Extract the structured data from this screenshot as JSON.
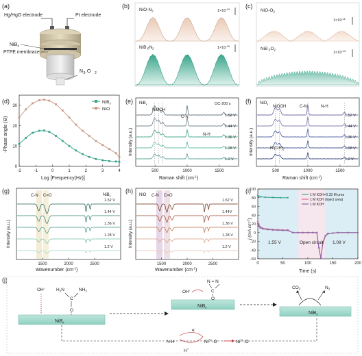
{
  "panels": {
    "a": {
      "letter": "(a)",
      "hg": "Hg/HgO electrode",
      "pt": "Pt electrode",
      "nib": "NiB",
      "nib_sub": "x",
      "ptfe": "PTFE membrace",
      "gas": "N  , O",
      "gas_sub1": "2",
      "gas_sub2": "2"
    },
    "b": {
      "letter": "(b)",
      "top": "NiO-N",
      "top_sub": "2",
      "bot": "NiB -N",
      "bot_sub1": "x",
      "bot_sub2": "2",
      "scale1": "1×10",
      "scale1_exp": "-10",
      "scale2": "1×10",
      "scale2_exp": "-10"
    },
    "c": {
      "letter": "(c)",
      "top": "NiO-O",
      "top_sub": "2",
      "bot": "NiB -O",
      "bot_sub1": "x",
      "bot_sub2": "2",
      "scale1": "1×10",
      "scale1_exp": "-11",
      "scale2": "1×10",
      "scale2_exp": "-13"
    },
    "d": {
      "letter": "(d)",
      "ylabel": "-Phase angle (ϴ)",
      "xlabel": "Log [Frequency(Hz)]",
      "legend": [
        "NiB",
        "NiO"
      ],
      "legend_sub": "x"
    },
    "e": {
      "letter": "(e)",
      "ylabel": "Intensity (a.u.)",
      "xlabel": "Raman shift (cm",
      "xlabel_sup": "-1",
      "xlabel_end": ")",
      "tag1": "NiB",
      "tag1_sub": "x",
      "tag2": "NiOOH",
      "tag3": "C-N",
      "tag4": "N-H",
      "tag5": "OC-200 s",
      "voltages": [
        "1.52 V",
        "1.44 V",
        "1.36 V",
        "1.28 V",
        "1.2 V"
      ]
    },
    "f": {
      "letter": "(f)",
      "ylabel": "Intensity (a.u.)",
      "xlabel": "Raman shift (cm",
      "xlabel_sup": "-1",
      "xlabel_end": ")",
      "tag1": "NiO",
      "tag1_sub": "x",
      "tag2": "NiOOH",
      "tag3": "C-N",
      "tag4": "N-H",
      "tag5": "Ni(OH)",
      "tag5_sub": "2",
      "voltages": [
        "1.52 V",
        "1.44 V",
        "1.36 V",
        "1.28 V",
        "1.2 V"
      ]
    },
    "g": {
      "letter": "(g)",
      "ylabel": "Intensity (a.u.)",
      "xlabel": "Wavenumber (cm",
      "xlabel_sup": "-1",
      "xlabel_end": ")",
      "tag1": "C-N",
      "tag2": "C=O",
      "tag3": "NiB",
      "tag3_sub": "x",
      "voltages": [
        "1.52 V",
        "1.44 V",
        "1.36 V",
        "1.28 V",
        "1.2 V"
      ]
    },
    "h": {
      "letter": "(h)",
      "ylabel": "Intensity (a.u.)",
      "xlabel": "Wavenumber (cm",
      "xlabel_sup": "-1",
      "xlabel_end": ")",
      "tag1": "NiO",
      "tag2": "C-N",
      "tag3": "C=O",
      "voltages": [
        "1.52 V",
        "1.44V",
        "1.36 V",
        "1.28 V",
        "1.2 V"
      ]
    },
    "i": {
      "letter": "(i)",
      "ylabel": "j (mA cm",
      "ylabel_sup": "-2",
      "ylabel_end": ")",
      "xlabel": "Time (s)",
      "legend": [
        "1 M KOH+0.33 M urea",
        "1 M KOH (inject urea)",
        "1 M KOH"
      ],
      "region1": "1.55 V",
      "region2": "Open circuit",
      "region3": "1.08 V"
    },
    "j": {
      "letter": "(j)",
      "oh": "OH",
      "oh_sup": "-",
      "h2n1": "H",
      "h2n1_sub": "2",
      "h2n1_end": "N",
      "nh2": "N",
      "nh2_end": "H",
      "nh2_sub": "2",
      "c": "C",
      "o": "O",
      "nib": "NiB",
      "nib_sub": "x",
      "oh2": "OH",
      "oh2_sup": "-",
      "n_eq": "N = N",
      "c2": "C",
      "o2": "O",
      "nib2": "NiB",
      "nib2_sub": "x",
      "co2": "CO",
      "co2_sub": "2",
      "n2": "N",
      "n2_sub": "2",
      "nib3": "NiB",
      "nib3_sub": "x",
      "nh": "N-H",
      "e": "e",
      "e_sup": "-",
      "h": "H",
      "h_sup": "+",
      "ni3": "Ni",
      "ni3_sup": "3+",
      "ni3_end": "-O",
      "ni2": "Ni",
      "ni2_sup": "2+",
      "ni2_end": "-O"
    }
  },
  "chart_data": [
    {
      "panel": "d",
      "type": "line",
      "xlabel": "Log [Frequency(Hz)]",
      "ylabel": "-Phase angle (ϴ)",
      "xlim": [
        -2,
        4
      ],
      "ylim": [
        0,
        35
      ],
      "x_ticks": [
        -2,
        -1,
        0,
        1,
        2,
        3,
        4
      ],
      "y_ticks": [
        0,
        10,
        20,
        30
      ],
      "series": [
        {
          "name": "NiB",
          "sub": "x",
          "color": "#3aa58c",
          "x": [
            -2,
            -1.6,
            -1.2,
            -0.8,
            -0.5,
            -0.2,
            0.2,
            0.6,
            1,
            1.4,
            1.8,
            2.2,
            2.6,
            3,
            3.4,
            3.8,
            4
          ],
          "y": [
            11,
            14,
            16.5,
            17.5,
            17.6,
            17,
            15,
            12.5,
            10,
            7.8,
            6,
            4.6,
            3.6,
            3,
            2.6,
            2.4,
            2.3
          ]
        },
        {
          "name": "NiO",
          "color": "#c99b86",
          "x": [
            -2,
            -1.6,
            -1.2,
            -0.8,
            -0.5,
            -0.2,
            0.2,
            0.6,
            1,
            1.4,
            1.8,
            2.2,
            2.6,
            3,
            3.4,
            3.8,
            4
          ],
          "y": [
            24,
            28,
            31,
            32.5,
            32.8,
            32.3,
            30.5,
            27.5,
            24,
            20.5,
            17.5,
            15,
            12.5,
            10.5,
            8.5,
            6.5,
            4.5
          ]
        }
      ]
    },
    {
      "panel": "e",
      "type": "line",
      "xlabel": "Raman shift (cm-1)",
      "ylabel": "Intensity (a.u.)",
      "xlim": [
        200,
        1800
      ],
      "x_ticks": [
        500,
        1000,
        1500
      ]
    },
    {
      "panel": "f",
      "type": "line",
      "xlabel": "Raman shift (cm-1)",
      "ylabel": "Intensity (a.u.)",
      "xlim": [
        200,
        1800
      ],
      "x_ticks": [
        500,
        1000,
        1500
      ]
    },
    {
      "panel": "g",
      "type": "line",
      "xlabel": "Wavenumber (cm-1)",
      "ylabel": "Intensity (a.u.)",
      "xlim": [
        1000,
        3000
      ],
      "x_ticks": [
        1500,
        2000,
        2500
      ]
    },
    {
      "panel": "h",
      "type": "line",
      "xlabel": "Wavenumber (cm-1)",
      "ylabel": "Intensity (a.u.)",
      "xlim": [
        1000,
        3000
      ],
      "x_ticks": [
        1500,
        2000,
        2500
      ]
    },
    {
      "panel": "i",
      "type": "line",
      "xlabel": "Time (s)",
      "ylabel": "j (mA cm-2)",
      "xlim": [
        0,
        200
      ],
      "ylim": [
        -60,
        100
      ],
      "x_ticks": [
        0,
        50,
        100,
        150,
        200
      ],
      "y_ticks": [
        -60,
        -40,
        -20,
        0,
        20,
        40,
        60,
        80,
        100
      ],
      "series": [
        {
          "name": "1 M KOH+0.33 M urea",
          "color": "#3aa58c",
          "x": [
            0,
            2,
            6,
            15,
            30,
            45,
            60
          ],
          "y": [
            85,
            83,
            82,
            81,
            80.5,
            80,
            80
          ]
        },
        {
          "name": "1 M KOH (inject urea)",
          "color": "#d96b8a",
          "x": [
            0,
            2,
            5,
            10,
            20,
            30,
            40,
            50,
            60,
            70,
            80,
            90,
            100,
            110,
            118,
            122,
            126,
            130,
            135,
            140,
            150,
            160,
            180,
            200
          ],
          "y": [
            25,
            18,
            13,
            10,
            8,
            7,
            6.5,
            6,
            6,
            0,
            0,
            0,
            0,
            0,
            0,
            -35,
            -58,
            -25,
            -8,
            -3,
            -1,
            0,
            0,
            0
          ]
        },
        {
          "name": "1 M KOH",
          "color": "#8a6aa6",
          "x": [
            0,
            2,
            5,
            10,
            20,
            30,
            40,
            50,
            60,
            70,
            80,
            90,
            100,
            110,
            118,
            122,
            126,
            130,
            135,
            140,
            150,
            160,
            180,
            200
          ],
          "y": [
            20,
            15,
            11,
            8.5,
            7,
            6,
            5.5,
            5,
            5,
            0,
            0,
            0,
            0,
            0,
            0,
            -35,
            -58,
            -22,
            -7,
            -2,
            -1,
            0,
            0,
            0
          ]
        }
      ]
    }
  ]
}
